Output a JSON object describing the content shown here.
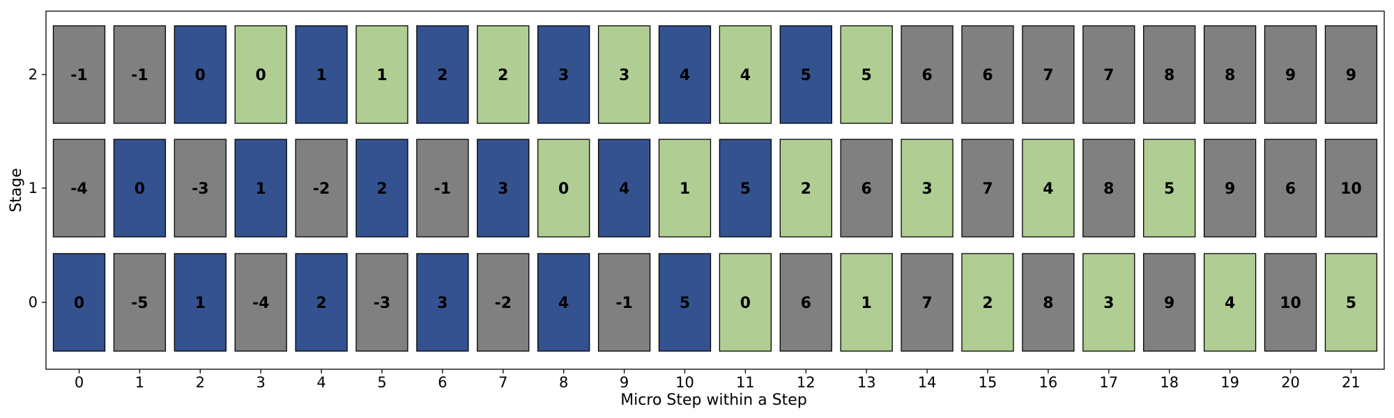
{
  "chart_data": {
    "type": "heatmap",
    "title": "",
    "xlabel": "Micro Step within a Step",
    "ylabel": "Stage",
    "x_ticks": [
      0,
      1,
      2,
      3,
      4,
      5,
      6,
      7,
      8,
      9,
      10,
      11,
      12,
      13,
      14,
      15,
      16,
      17,
      18,
      19,
      20,
      21
    ],
    "y_ticks": [
      0,
      1,
      2
    ],
    "colors": {
      "forward": "#34528f",
      "backward": "#b0cd93",
      "idle": "#808080"
    },
    "rows": [
      {
        "stage": 0,
        "cells": [
          {
            "label": "0",
            "kind": "forward"
          },
          {
            "label": "-5",
            "kind": "idle"
          },
          {
            "label": "1",
            "kind": "forward"
          },
          {
            "label": "-4",
            "kind": "idle"
          },
          {
            "label": "2",
            "kind": "forward"
          },
          {
            "label": "-3",
            "kind": "idle"
          },
          {
            "label": "3",
            "kind": "forward"
          },
          {
            "label": "-2",
            "kind": "idle"
          },
          {
            "label": "4",
            "kind": "forward"
          },
          {
            "label": "-1",
            "kind": "idle"
          },
          {
            "label": "5",
            "kind": "forward"
          },
          {
            "label": "0",
            "kind": "backward"
          },
          {
            "label": "6",
            "kind": "idle"
          },
          {
            "label": "1",
            "kind": "backward"
          },
          {
            "label": "7",
            "kind": "idle"
          },
          {
            "label": "2",
            "kind": "backward"
          },
          {
            "label": "8",
            "kind": "idle"
          },
          {
            "label": "3",
            "kind": "backward"
          },
          {
            "label": "9",
            "kind": "idle"
          },
          {
            "label": "4",
            "kind": "backward"
          },
          {
            "label": "10",
            "kind": "idle"
          },
          {
            "label": "5",
            "kind": "backward"
          }
        ]
      },
      {
        "stage": 1,
        "cells": [
          {
            "label": "-4",
            "kind": "idle"
          },
          {
            "label": "0",
            "kind": "forward"
          },
          {
            "label": "-3",
            "kind": "idle"
          },
          {
            "label": "1",
            "kind": "forward"
          },
          {
            "label": "-2",
            "kind": "idle"
          },
          {
            "label": "2",
            "kind": "forward"
          },
          {
            "label": "-1",
            "kind": "idle"
          },
          {
            "label": "3",
            "kind": "forward"
          },
          {
            "label": "0",
            "kind": "backward"
          },
          {
            "label": "4",
            "kind": "forward"
          },
          {
            "label": "1",
            "kind": "backward"
          },
          {
            "label": "5",
            "kind": "forward"
          },
          {
            "label": "2",
            "kind": "backward"
          },
          {
            "label": "6",
            "kind": "idle"
          },
          {
            "label": "3",
            "kind": "backward"
          },
          {
            "label": "7",
            "kind": "idle"
          },
          {
            "label": "4",
            "kind": "backward"
          },
          {
            "label": "8",
            "kind": "idle"
          },
          {
            "label": "5",
            "kind": "backward"
          },
          {
            "label": "9",
            "kind": "idle"
          },
          {
            "label": "6",
            "kind": "idle"
          },
          {
            "label": "10",
            "kind": "idle"
          }
        ]
      },
      {
        "stage": 2,
        "cells": [
          {
            "label": "-1",
            "kind": "idle"
          },
          {
            "label": "-1",
            "kind": "idle"
          },
          {
            "label": "0",
            "kind": "forward"
          },
          {
            "label": "0",
            "kind": "backward"
          },
          {
            "label": "1",
            "kind": "forward"
          },
          {
            "label": "1",
            "kind": "backward"
          },
          {
            "label": "2",
            "kind": "forward"
          },
          {
            "label": "2",
            "kind": "backward"
          },
          {
            "label": "3",
            "kind": "forward"
          },
          {
            "label": "3",
            "kind": "backward"
          },
          {
            "label": "4",
            "kind": "forward"
          },
          {
            "label": "4",
            "kind": "backward"
          },
          {
            "label": "5",
            "kind": "forward"
          },
          {
            "label": "5",
            "kind": "backward"
          },
          {
            "label": "6",
            "kind": "idle"
          },
          {
            "label": "6",
            "kind": "idle"
          },
          {
            "label": "7",
            "kind": "idle"
          },
          {
            "label": "7",
            "kind": "idle"
          },
          {
            "label": "8",
            "kind": "idle"
          },
          {
            "label": "8",
            "kind": "idle"
          },
          {
            "label": "9",
            "kind": "idle"
          },
          {
            "label": "9",
            "kind": "idle"
          }
        ]
      }
    ]
  }
}
